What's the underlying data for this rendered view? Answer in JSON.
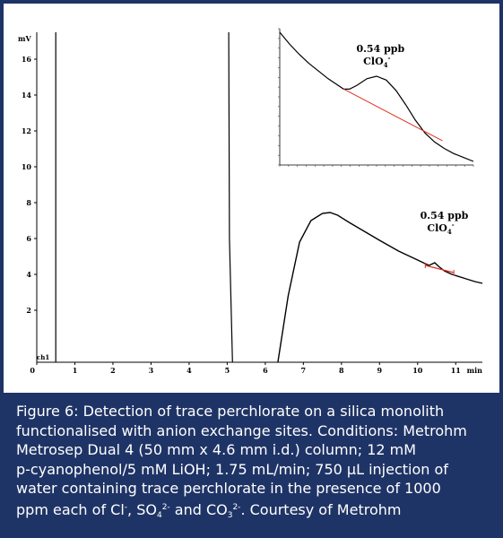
{
  "chart_data": [
    {
      "type": "line",
      "name": "main-chromatogram",
      "ylabel": "mV",
      "xlabel": "min",
      "xlim": [
        0,
        11.7
      ],
      "ylim": [
        -0.9,
        17.5
      ],
      "x_ticks": [
        0,
        1,
        2,
        3,
        4,
        5,
        6,
        7,
        8,
        9,
        10,
        11
      ],
      "y_ticks": [
        2,
        4,
        6,
        8,
        10,
        12,
        14,
        16
      ],
      "channel_label": "ch1",
      "series": [
        {
          "x": [
            6.33,
            6.6,
            6.9,
            7.2,
            7.5,
            7.7,
            7.9,
            8.2,
            8.6,
            9.0,
            9.5,
            10.0,
            10.3,
            10.45,
            10.55,
            10.7,
            10.9,
            11.2,
            11.5,
            11.7
          ],
          "y": [
            -0.9,
            2.8,
            5.8,
            7.0,
            7.4,
            7.45,
            7.3,
            6.9,
            6.4,
            5.9,
            5.3,
            4.8,
            4.5,
            4.65,
            4.45,
            4.2,
            4.0,
            3.8,
            3.6,
            3.5
          ]
        },
        {
          "x": [
            5.14,
            5.06,
            5.04
          ],
          "y": [
            -0.9,
            6,
            17.5
          ]
        },
        {
          "x": [
            0.5,
            0.5
          ],
          "y": [
            -0.9,
            17.5
          ]
        }
      ],
      "annotation": {
        "text": "0.54 ppb",
        "ion": "ClO",
        "ion_sub": "4",
        "ion_sup": "-"
      },
      "baseline": {
        "x": [
          10.2,
          10.95
        ],
        "y": [
          4.5,
          4.1
        ]
      }
    },
    {
      "type": "line",
      "name": "inset-zoom",
      "series": [
        {
          "x": [
            0,
            5,
            10,
            15,
            20,
            25,
            30,
            33,
            36,
            40,
            45,
            50,
            55,
            60,
            65,
            70,
            75,
            80,
            85,
            90,
            95,
            100
          ],
          "y": [
            100,
            91,
            83,
            76,
            70,
            64,
            59,
            56,
            56,
            59,
            64,
            66,
            63,
            55,
            44,
            32,
            22,
            15,
            10,
            6,
            3,
            0
          ]
        }
      ],
      "baseline": {
        "x": [
          33,
          84
        ],
        "y": [
          56,
          16
        ]
      },
      "annotation": {
        "text": "0.54 ppb",
        "ion": "ClO",
        "ion_sub": "4",
        "ion_sup": "-"
      }
    }
  ],
  "caption": {
    "lines": [
      "Figure 6: Detection of trace perchlorate on a silica monolith",
      "functionalised with anion exchange sites. Conditions: Metrohm",
      "Metrosep Dual 4 (50 mm x 4.6 mm i.d.) column; 12 mM",
      "p-cyanophenol/5 mM LiOH; 1.75 mL/min; 750 µL injection of",
      "water containing trace perchlorate in the presence of 1000"
    ],
    "last_line": {
      "pre": "ppm each of Cl",
      "sup1": "-",
      "mid1": ", SO",
      "sub2": "4",
      "sup2": "2-",
      "mid2": " and CO",
      "sub3": "3",
      "sup3": "2-",
      "post": ".  Courtesy of Metrohm"
    }
  },
  "colors": {
    "frame": "#1f3466",
    "curve": "#000000",
    "baseline": "#e03020",
    "grid_axis": "#000000"
  }
}
